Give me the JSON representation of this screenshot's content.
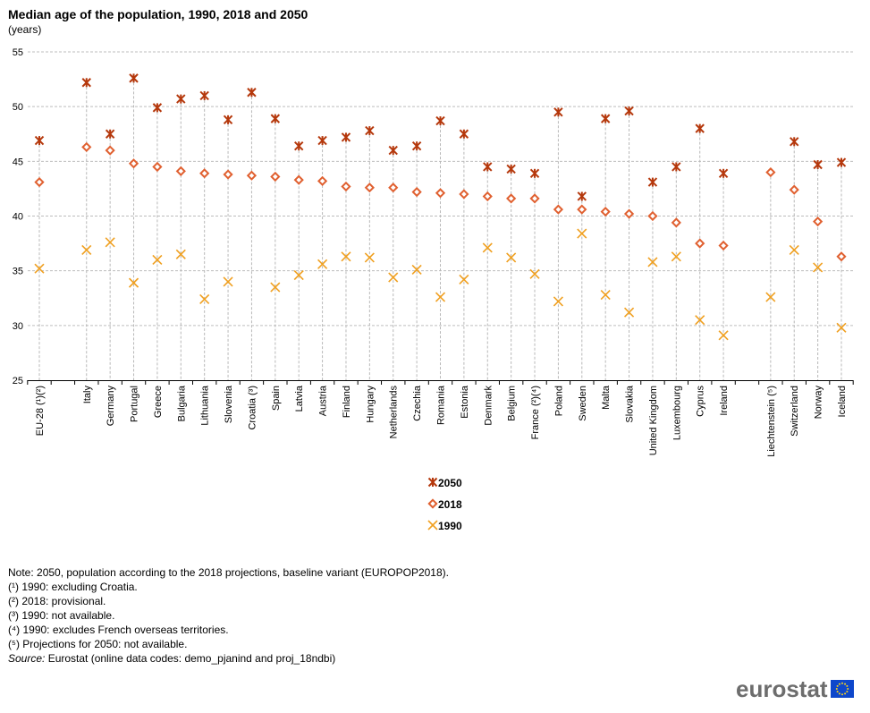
{
  "header": {
    "title": "Median age of the population, 1990, 2018 and 2050",
    "subtitle": "(years)"
  },
  "chart_data": {
    "type": "scatter",
    "title": "Median age of the population, 1990, 2018 and 2050",
    "subtitle": "(years)",
    "ylim": [
      25,
      55
    ],
    "yticks": [
      25,
      30,
      35,
      40,
      45,
      50,
      55
    ],
    "grid": true,
    "legend_position": "bottom-center",
    "categories": [
      "EU-28 (¹)(²)",
      "",
      "Italy",
      "Germany",
      "Portugal",
      "Greece",
      "Bulgaria",
      "Lithuania",
      "Slovenia",
      "Croatia (³)",
      "Spain",
      "Latvia",
      "Austria",
      "Finland",
      "Hungary",
      "Netherlands",
      "Czechia",
      "Romania",
      "Estonia",
      "Denmark",
      "Belgium",
      "France (²)(⁴)",
      "Poland",
      "Sweden",
      "Malta",
      "Slovakia",
      "United Kingdom",
      "Luxembourg",
      "Cyprus",
      "Ireland",
      "",
      "Liechtenstein (⁵)",
      "Switzerland",
      "Norway",
      "Iceland"
    ],
    "series": [
      {
        "name": "2050",
        "marker": "asterisk",
        "color": "#b5380c",
        "values": [
          46.9,
          null,
          52.2,
          47.5,
          52.6,
          49.9,
          50.7,
          51.0,
          48.8,
          51.3,
          48.9,
          46.4,
          46.9,
          47.2,
          47.8,
          46.0,
          46.4,
          48.7,
          47.5,
          44.5,
          44.3,
          43.9,
          49.5,
          41.8,
          48.9,
          49.6,
          43.1,
          44.5,
          48.0,
          43.9,
          null,
          null,
          46.8,
          44.7,
          44.9
        ]
      },
      {
        "name": "2018",
        "marker": "diamond",
        "color": "#e06030",
        "values": [
          43.1,
          null,
          46.3,
          46.0,
          44.8,
          44.5,
          44.1,
          43.9,
          43.8,
          43.7,
          43.6,
          43.3,
          43.2,
          42.7,
          42.6,
          42.6,
          42.2,
          42.1,
          42.0,
          41.8,
          41.6,
          41.6,
          40.6,
          40.6,
          40.4,
          40.2,
          40.0,
          39.4,
          37.5,
          37.3,
          null,
          44.0,
          42.4,
          39.5,
          36.3
        ]
      },
      {
        "name": "1990",
        "marker": "cross",
        "color": "#f0a020",
        "values": [
          35.2,
          null,
          36.9,
          37.6,
          33.9,
          36.0,
          36.5,
          32.4,
          34.0,
          null,
          33.5,
          34.6,
          35.6,
          36.3,
          36.2,
          34.4,
          35.1,
          32.6,
          34.2,
          37.1,
          36.2,
          34.7,
          32.2,
          38.4,
          32.8,
          31.2,
          35.8,
          36.3,
          30.5,
          29.1,
          null,
          32.6,
          36.9,
          35.3,
          29.8
        ]
      }
    ]
  },
  "notes": {
    "lines": [
      "Note: 2050, population according to the 2018 projections, baseline variant (EUROPOP2018).",
      "(¹) 1990: excluding Croatia.",
      "(²) 2018: provisional.",
      "(³) 1990: not available.",
      "(⁴) 1990: excludes French overseas territories.",
      "(⁵) Projections for 2050: not available."
    ],
    "source_label": "Source:",
    "source_text": " Eurostat (online data codes: demo_pjanind and proj_18ndbi)"
  },
  "logo": {
    "text": "eurostat",
    "colors": {
      "blue": "#0e47cb",
      "gold": "#ffd617",
      "grey": "#6d6d6d"
    }
  }
}
